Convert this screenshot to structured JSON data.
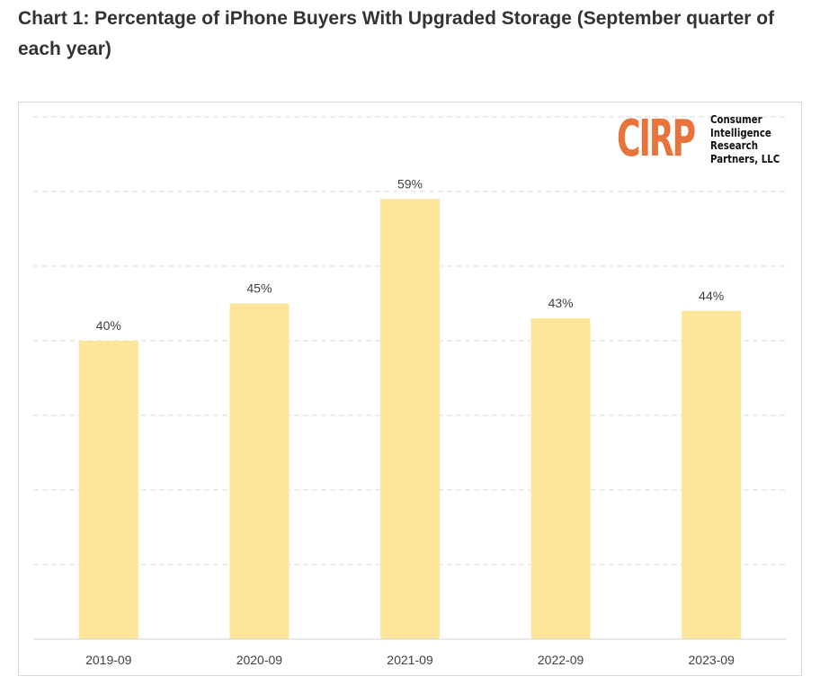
{
  "title": "Chart 1: Percentage of iPhone Buyers With Upgraded Storage (September quarter of each year)",
  "logo": {
    "mark": "CIRP",
    "lines": [
      "Consumer",
      "Intelligence",
      "Research",
      "Partners, LLC"
    ],
    "color": "#e8743b"
  },
  "chart_data": {
    "type": "bar",
    "categories": [
      "2019-09",
      "2020-09",
      "2021-09",
      "2022-09",
      "2023-09"
    ],
    "values": [
      40,
      45,
      59,
      43,
      44
    ],
    "data_labels": [
      "40%",
      "45%",
      "59%",
      "43%",
      "44%"
    ],
    "ylim": [
      0,
      70
    ],
    "y_gridlines": [
      10,
      20,
      30,
      40,
      50,
      60,
      70
    ],
    "grid": true,
    "bar_color": "#fde699",
    "xlabel": "",
    "ylabel": ""
  }
}
